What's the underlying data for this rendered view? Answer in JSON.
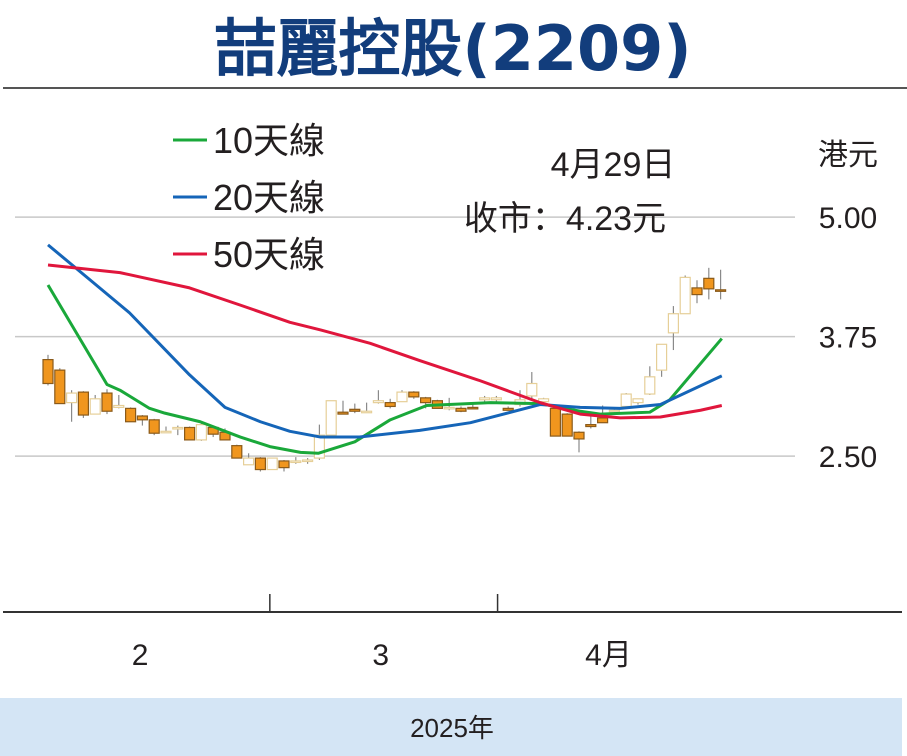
{
  "chart_data": {
    "type": "candlestick",
    "title": "喆麗控股(2209)",
    "unit_label": "港元",
    "annotation": {
      "date": "4月29日",
      "close": "收市：4.23元"
    },
    "legend": [
      {
        "label": "10天線",
        "color": "#1aa83a"
      },
      {
        "label": "20天線",
        "color": "#1565b8"
      },
      {
        "label": "50天線",
        "color": "#e0163c"
      }
    ],
    "legend_placement": "top-left",
    "ylim": [
      0.87,
      6.33
    ],
    "yticks": [
      {
        "value": 5.0,
        "label": "5.00"
      },
      {
        "value": 3.75,
        "label": "3.75"
      },
      {
        "value": 2.5,
        "label": "2.50"
      }
    ],
    "x_count": 58,
    "month_separators": [
      19.8,
      39.1
    ],
    "month_labels": [
      {
        "pos": 8.8,
        "label": "2"
      },
      {
        "pos": 29.2,
        "label": "3"
      },
      {
        "pos": 48.5,
        "label": "4月"
      }
    ],
    "xlabel": "2025年",
    "candles_ohlc": [
      [
        3.51,
        3.56,
        3.24,
        3.26
      ],
      [
        3.4,
        3.42,
        3.05,
        3.05
      ],
      [
        3.06,
        3.19,
        2.86,
        3.16
      ],
      [
        3.17,
        3.18,
        2.9,
        2.93
      ],
      [
        2.94,
        3.14,
        2.94,
        3.1
      ],
      [
        3.16,
        3.2,
        2.94,
        2.97
      ],
      [
        3.01,
        3.14,
        3.0,
        3.03
      ],
      [
        3.0,
        3.01,
        2.86,
        2.86
      ],
      [
        2.92,
        2.93,
        2.82,
        2.88
      ],
      [
        2.88,
        2.89,
        2.72,
        2.74
      ],
      [
        2.75,
        2.81,
        2.75,
        2.76
      ],
      [
        2.8,
        2.82,
        2.72,
        2.8
      ],
      [
        2.8,
        2.81,
        2.67,
        2.67
      ],
      [
        2.67,
        2.86,
        2.66,
        2.83
      ],
      [
        2.8,
        2.81,
        2.7,
        2.73
      ],
      [
        2.75,
        2.79,
        2.67,
        2.67
      ],
      [
        2.61,
        2.62,
        2.48,
        2.48
      ],
      [
        2.41,
        2.53,
        2.41,
        2.48
      ],
      [
        2.48,
        2.49,
        2.34,
        2.36
      ],
      [
        2.36,
        2.48,
        2.36,
        2.48
      ],
      [
        2.45,
        2.46,
        2.34,
        2.38
      ],
      [
        2.44,
        2.49,
        2.42,
        2.45
      ],
      [
        2.45,
        2.48,
        2.42,
        2.46
      ],
      [
        2.48,
        2.83,
        2.46,
        2.72
      ],
      [
        2.72,
        3.08,
        2.71,
        3.08
      ],
      [
        2.96,
        3.08,
        2.94,
        2.94
      ],
      [
        2.99,
        3.05,
        2.95,
        2.97
      ],
      [
        2.97,
        3.06,
        2.96,
        2.97
      ],
      [
        3.06,
        3.19,
        3.05,
        3.08
      ],
      [
        3.06,
        3.1,
        3.0,
        3.02
      ],
      [
        3.07,
        3.19,
        3.07,
        3.17
      ],
      [
        3.17,
        3.18,
        3.1,
        3.12
      ],
      [
        3.11,
        3.12,
        3.0,
        3.06
      ],
      [
        3.08,
        3.09,
        3.0,
        3.0
      ],
      [
        3.0,
        3.11,
        2.98,
        3.01
      ],
      [
        3.0,
        3.02,
        2.96,
        2.97
      ],
      [
        3.01,
        3.05,
        2.99,
        3.0
      ],
      [
        3.09,
        3.13,
        3.05,
        3.11
      ],
      [
        3.09,
        3.13,
        3.05,
        3.11
      ],
      [
        3.0,
        3.02,
        2.98,
        2.98
      ],
      [
        3.04,
        3.19,
        3.02,
        3.09
      ],
      [
        3.13,
        3.38,
        3.1,
        3.26
      ],
      [
        3.07,
        3.11,
        3.05,
        3.1
      ],
      [
        3.0,
        3.0,
        2.71,
        2.71
      ],
      [
        2.94,
        2.95,
        2.71,
        2.71
      ],
      [
        2.75,
        2.76,
        2.54,
        2.68
      ],
      [
        2.83,
        2.93,
        2.79,
        2.81
      ],
      [
        2.9,
        3.03,
        2.85,
        2.85
      ],
      [
        2.97,
        3.0,
        2.94,
        2.98
      ],
      [
        3.02,
        3.16,
        3.0,
        3.15
      ],
      [
        3.06,
        3.1,
        3.04,
        3.1
      ],
      [
        3.15,
        3.44,
        3.14,
        3.33
      ],
      [
        3.4,
        3.67,
        3.33,
        3.67
      ],
      [
        3.79,
        4.07,
        3.61,
        3.99
      ],
      [
        3.99,
        4.39,
        3.99,
        4.37
      ],
      [
        4.26,
        4.34,
        4.1,
        4.19
      ],
      [
        4.36,
        4.47,
        4.14,
        4.25
      ],
      [
        4.24,
        4.45,
        4.14,
        4.23
      ]
    ],
    "series": [
      {
        "name": "10天線",
        "points": [
          [
            1,
            4.29
          ],
          [
            6,
            3.25
          ],
          [
            7.1,
            3.19
          ],
          [
            9.6,
            3.0
          ],
          [
            10.9,
            2.95
          ],
          [
            13.9,
            2.86
          ],
          [
            17.3,
            2.7
          ],
          [
            19.8,
            2.6
          ],
          [
            22.4,
            2.54
          ],
          [
            23.9,
            2.53
          ],
          [
            27,
            2.65
          ],
          [
            30,
            2.88
          ],
          [
            33.1,
            3.03
          ],
          [
            38.5,
            3.06
          ],
          [
            42.7,
            3.05
          ],
          [
            46.1,
            2.97
          ],
          [
            47.8,
            2.94
          ],
          [
            52,
            2.96
          ],
          [
            53.7,
            3.09
          ],
          [
            58.1,
            3.73
          ]
        ]
      },
      {
        "name": "20天線",
        "points": [
          [
            1,
            4.71
          ],
          [
            4.6,
            4.34
          ],
          [
            7.9,
            4.0
          ],
          [
            13,
            3.35
          ],
          [
            16,
            3.01
          ],
          [
            19,
            2.86
          ],
          [
            21.5,
            2.76
          ],
          [
            24.1,
            2.7
          ],
          [
            27.4,
            2.7
          ],
          [
            32.5,
            2.77
          ],
          [
            36.8,
            2.85
          ],
          [
            42.7,
            3.04
          ],
          [
            46.1,
            3.01
          ],
          [
            49.5,
            3.0
          ],
          [
            52.9,
            3.04
          ],
          [
            58.1,
            3.34
          ]
        ]
      },
      {
        "name": "50天線",
        "points": [
          [
            1,
            4.5
          ],
          [
            7.1,
            4.42
          ],
          [
            13,
            4.26
          ],
          [
            17.3,
            4.08
          ],
          [
            21.5,
            3.9
          ],
          [
            24.1,
            3.82
          ],
          [
            28.3,
            3.68
          ],
          [
            32.5,
            3.5
          ],
          [
            37.6,
            3.29
          ],
          [
            42.7,
            3.06
          ],
          [
            46.1,
            2.94
          ],
          [
            49.5,
            2.9
          ],
          [
            52.9,
            2.91
          ],
          [
            56.3,
            2.98
          ],
          [
            58.1,
            3.03
          ]
        ]
      }
    ]
  }
}
